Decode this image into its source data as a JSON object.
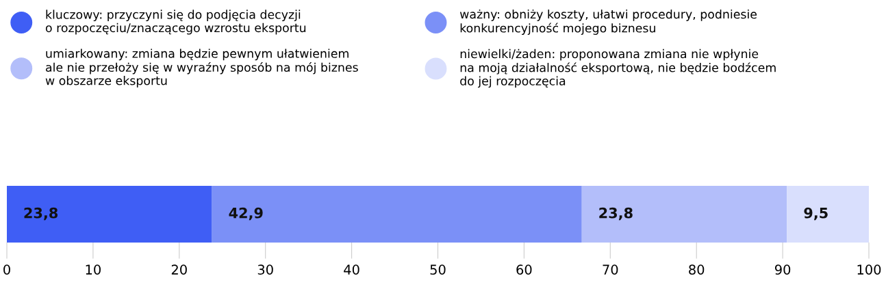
{
  "chart_data": {
    "type": "bar",
    "orientation": "horizontal",
    "stacked": true,
    "categories": [
      null
    ],
    "series": [
      {
        "name": "kluczowy: przyczyni się do podjęcia decyzji\no rozpoczęciu/znaczącego wzrostu eksportu",
        "color": "#3f5ef5",
        "values": [
          23.8
        ],
        "value_labels": [
          "23,8"
        ]
      },
      {
        "name": "ważny: obniży koszty, ułatwi procedury, podniesie\nkonkurencyjność mojego biznesu",
        "color": "#7b90f7",
        "values": [
          42.9
        ],
        "value_labels": [
          "42,9"
        ]
      },
      {
        "name": "umiarkowany: zmiana będzie pewnym ułatwieniem\nale nie przełoży się w wyraźny sposób na mój biznes\nw obszarze eksportu",
        "color": "#b3befa",
        "values": [
          23.8
        ],
        "value_labels": [
          "23,8"
        ]
      },
      {
        "name": "niewielki/żaden: proponowana zmiana nie wpłynie\nna moją działalność eksportową, nie będzie bodźcem\ndo jej rozpoczęcia",
        "color": "#d9dffd",
        "values": [
          9.5
        ],
        "value_labels": [
          "9,5"
        ]
      }
    ],
    "xlim": [
      0,
      100
    ],
    "xticks": [
      0,
      10,
      20,
      30,
      40,
      50,
      60,
      70,
      80,
      90,
      100
    ],
    "legend": "top",
    "grid": false
  }
}
